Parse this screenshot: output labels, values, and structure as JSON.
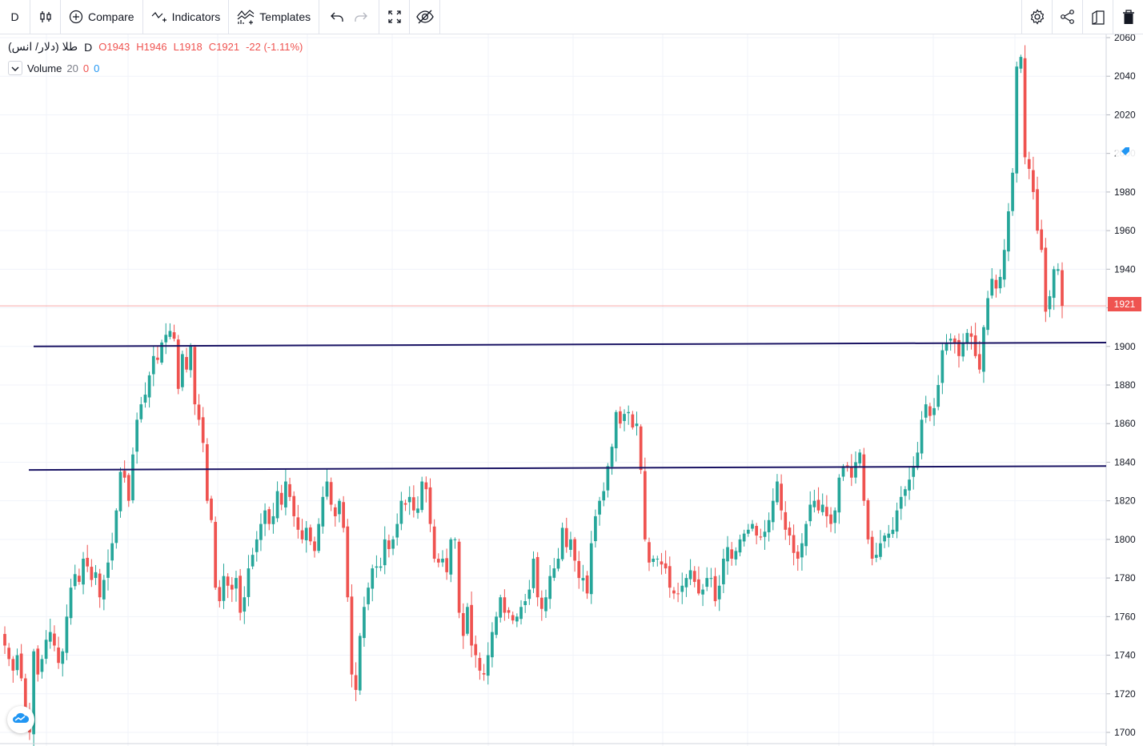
{
  "toolbar": {
    "interval": "D",
    "compare_label": "Compare",
    "indicators_label": "Indicators",
    "templates_label": "Templates",
    "icons": [
      "candles-icon",
      "plus-circle-icon",
      "indicators-icon",
      "templates-icon",
      "undo-icon",
      "redo-icon",
      "fullscreen-icon",
      "hide-eye-icon",
      "gear-icon",
      "share-icon",
      "snapshot-icon",
      "trash-icon"
    ]
  },
  "legend": {
    "symbol": "طلا (دلار/ انس)",
    "interval": "D",
    "open": "O1943",
    "high": "H1946",
    "low": "L1918",
    "close": "C1921",
    "change": "-22 (-1.11%)"
  },
  "volume_legend": {
    "label": "Volume",
    "length": "20",
    "value_a": "0",
    "value_b": "0"
  },
  "last_price_label": "1921",
  "colors": {
    "up": "#26a69a",
    "down": "#ef5350",
    "trendline": "#1a1464",
    "grid": "#f0f3fa",
    "last_price_line": "#f7a8a6"
  },
  "chart_data": {
    "type": "candlestick",
    "y_axis": {
      "min": 1700,
      "max": 2060,
      "ticks": [
        1700,
        1720,
        1740,
        1760,
        1780,
        1800,
        1820,
        1840,
        1860,
        1880,
        1900,
        1920,
        1940,
        1960,
        1980,
        2000,
        2020,
        2040,
        2060
      ]
    },
    "last_price": 1921,
    "horizontal_lines": [
      {
        "start": 1900,
        "end": 1902
      },
      {
        "start": 1836,
        "end": 1838
      }
    ],
    "closes": [
      1745,
      1738,
      1732,
      1740,
      1728,
      1712,
      1700,
      1742,
      1730,
      1738,
      1748,
      1752,
      1745,
      1736,
      1742,
      1760,
      1775,
      1782,
      1778,
      1790,
      1786,
      1779,
      1783,
      1770,
      1779,
      1788,
      1798,
      1815,
      1835,
      1832,
      1820,
      1844,
      1862,
      1870,
      1875,
      1885,
      1895,
      1893,
      1902,
      1906,
      1908,
      1904,
      1878,
      1896,
      1888,
      1900,
      1870,
      1862,
      1850,
      1820,
      1810,
      1775,
      1768,
      1781,
      1776,
      1774,
      1780,
      1762,
      1770,
      1785,
      1792,
      1800,
      1808,
      1815,
      1808,
      1812,
      1825,
      1818,
      1830,
      1822,
      1812,
      1805,
      1800,
      1806,
      1799,
      1794,
      1808,
      1822,
      1830,
      1818,
      1812,
      1820,
      1806,
      1770,
      1730,
      1722,
      1750,
      1765,
      1775,
      1785,
      1786,
      1786,
      1800,
      1795,
      1800,
      1808,
      1820,
      1818,
      1822,
      1815,
      1816,
      1830,
      1826,
      1808,
      1790,
      1788,
      1790,
      1783,
      1800,
      1800,
      1762,
      1750,
      1765,
      1745,
      1740,
      1732,
      1730,
      1740,
      1752,
      1760,
      1770,
      1762,
      1762,
      1758,
      1760,
      1765,
      1768,
      1774,
      1790,
      1770,
      1764,
      1770,
      1781,
      1785,
      1790,
      1806,
      1796,
      1800,
      1789,
      1780,
      1780,
      1772,
      1798,
      1812,
      1820,
      1825,
      1838,
      1848,
      1866,
      1860,
      1865,
      1866,
      1858,
      1860,
      1836,
      1800,
      1788,
      1790,
      1790,
      1787,
      1785,
      1775,
      1772,
      1772,
      1776,
      1780,
      1784,
      1778,
      1772,
      1774,
      1780,
      1780,
      1768,
      1776,
      1790,
      1796,
      1790,
      1794,
      1800,
      1803,
      1805,
      1808,
      1802,
      1801,
      1804,
      1810,
      1820,
      1830,
      1815,
      1805,
      1802,
      1793,
      1790,
      1798,
      1808,
      1818,
      1820,
      1815,
      1818,
      1812,
      1808,
      1815,
      1832,
      1838,
      1838,
      1832,
      1840,
      1845,
      1820,
      1800,
      1790,
      1792,
      1798,
      1802,
      1803,
      1805,
      1815,
      1822,
      1826,
      1831,
      1838,
      1845,
      1862,
      1870,
      1864,
      1868,
      1880,
      1898,
      1902,
      1904,
      1902,
      1895,
      1902,
      1907,
      1905,
      1895,
      1888,
      1910,
      1925,
      1935,
      1930,
      1936,
      1950,
      1970,
      1990,
      2045,
      2050,
      1998,
      1992,
      1980,
      1960,
      1950,
      1918,
      1926,
      1940,
      1940,
      1921
    ]
  }
}
